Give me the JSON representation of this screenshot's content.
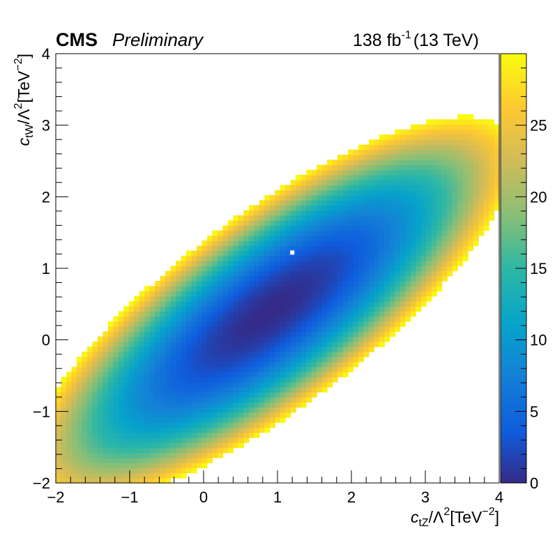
{
  "header": {
    "experiment": "CMS",
    "status": "Preliminary",
    "lumi_value": "138 fb",
    "lumi_exponent": "-1",
    "energy": "(13 TeV)"
  },
  "axes": {
    "x_title_var": "c",
    "x_title_sub": "tZ",
    "x_title_lambda": "/Λ",
    "x_title_lambda_exp": "2",
    "x_title_unit": "[TeV",
    "x_title_unit_exp": "−2",
    "x_title_close": "]",
    "y_title_var": "c",
    "y_title_sub": "tW",
    "y_title_lambda": "/Λ",
    "y_title_lambda_exp": "2",
    "y_title_unit": "[TeV",
    "y_title_unit_exp": "−2",
    "y_title_close": "]"
  },
  "chart_data": {
    "type": "heatmap",
    "title": "",
    "xlabel": "c_tZ/Λ^2[TeV^-2]",
    "ylabel": "c_tW/Λ^2[TeV^-2]",
    "xlim": [
      -2,
      4
    ],
    "ylim": [
      -2,
      4
    ],
    "x_ticks": [
      -2,
      -1,
      0,
      1,
      2,
      3,
      4
    ],
    "x_tick_labels": [
      "−2",
      "−1",
      "0",
      "1",
      "2",
      "3",
      "4"
    ],
    "y_ticks": [
      -2,
      -1,
      0,
      1,
      2,
      3,
      4
    ],
    "y_tick_labels": [
      "−2",
      "−1",
      "0",
      "1",
      "2",
      "3",
      "4"
    ],
    "z_range": [
      0,
      30
    ],
    "z_ticks": [
      0,
      5,
      10,
      15,
      20,
      25
    ],
    "z_tick_labels": [
      "0",
      "5",
      "10",
      "15",
      "20",
      "25"
    ],
    "colormap": [
      "#352a87",
      "#0f5cdd",
      "#1481d6",
      "#06a4ca",
      "#2eb7a4",
      "#87bf77",
      "#d1bb59",
      "#fec832",
      "#f9fb0e"
    ],
    "minimum": {
      "x": 0.9,
      "y": 0.4,
      "z": 0
    },
    "valley_slope": 0.78,
    "z_along_valley_per_unit": 1.8,
    "z_across_valley_per_unit_sq": 17.0,
    "best_fit_point": {
      "x": 1.2,
      "y": 1.22,
      "marker_color": "#ffffff"
    },
    "grid": false
  }
}
